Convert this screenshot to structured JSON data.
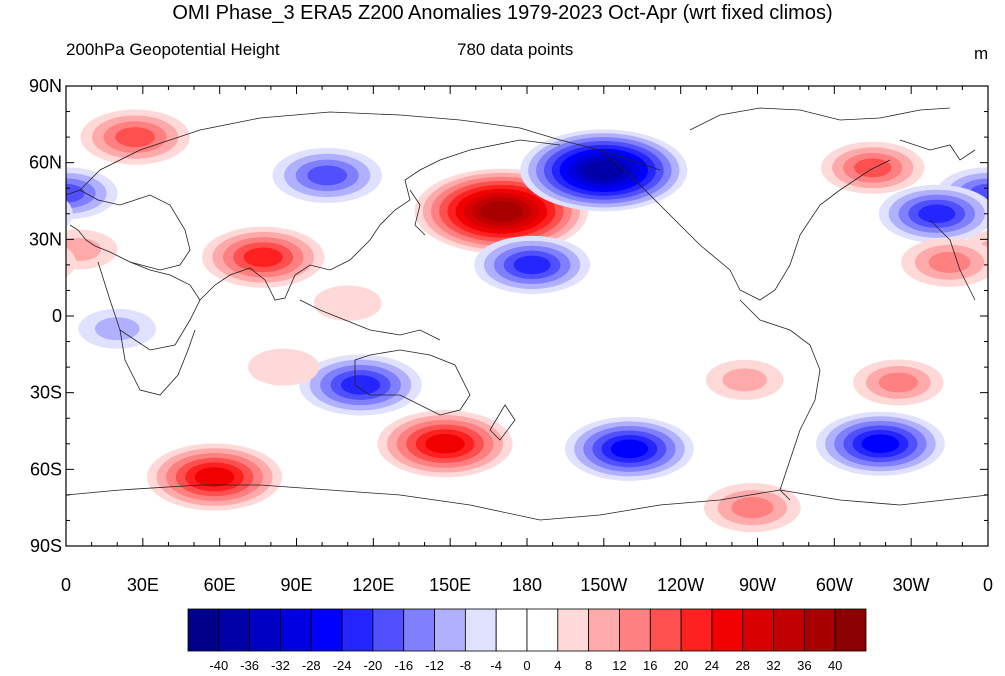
{
  "title": "OMI Phase_3 ERA5 Z200 Anomalies 1979-2023 Oct-Apr (wrt fixed climos)",
  "subtitle_left": "200hPa Geopotential Height",
  "subtitle_center": "780 data points",
  "units": "m",
  "lat_ticks": [
    {
      "value": 90,
      "label": "90N"
    },
    {
      "value": 60,
      "label": "60N"
    },
    {
      "value": 30,
      "label": "30N"
    },
    {
      "value": 0,
      "label": "0"
    },
    {
      "value": -30,
      "label": "30S"
    },
    {
      "value": -60,
      "label": "60S"
    },
    {
      "value": -90,
      "label": "90S"
    }
  ],
  "lon_ticks": [
    {
      "value": 0,
      "label": "0"
    },
    {
      "value": 30,
      "label": "30E"
    },
    {
      "value": 60,
      "label": "60E"
    },
    {
      "value": 90,
      "label": "90E"
    },
    {
      "value": 120,
      "label": "120E"
    },
    {
      "value": 150,
      "label": "150E"
    },
    {
      "value": 180,
      "label": "180"
    },
    {
      "value": 210,
      "label": "150W"
    },
    {
      "value": 240,
      "label": "120W"
    },
    {
      "value": 270,
      "label": "90W"
    },
    {
      "value": 300,
      "label": "60W"
    },
    {
      "value": 330,
      "label": "30W"
    },
    {
      "value": 360,
      "label": "0"
    }
  ],
  "colorbar": {
    "colors": [
      "#00008b",
      "#0000a8",
      "#0000c4",
      "#0000e0",
      "#0000ff",
      "#2525ff",
      "#5050ff",
      "#8080ff",
      "#b0b0ff",
      "#e0e0ff",
      "#ffffff",
      "#ffffff",
      "#ffd8d8",
      "#ffaaaa",
      "#ff8080",
      "#ff5050",
      "#ff2020",
      "#f00000",
      "#d80000",
      "#c00000",
      "#a80000",
      "#8b0000"
    ],
    "labels": [
      "-40",
      "-36",
      "-32",
      "-28",
      "-24",
      "-20",
      "-16",
      "-12",
      "-8",
      "-4",
      "0",
      "4",
      "8",
      "12",
      "16",
      "20",
      "24",
      "28",
      "32",
      "36",
      "40"
    ]
  },
  "chart_data": {
    "type": "heatmap",
    "title": "OMI Phase_3 ERA5 Z200 Anomalies 1979-2023 Oct-Apr (wrt fixed climos)",
    "variable": "200hPa Geopotential Height",
    "units": "m",
    "lon_range": [
      0,
      360
    ],
    "lat_range": [
      -90,
      90
    ],
    "contour_levels": [
      -40,
      -36,
      -32,
      -28,
      -24,
      -20,
      -16,
      -12,
      -8,
      -4,
      0,
      4,
      8,
      12,
      16,
      20,
      24,
      28,
      32,
      36,
      40
    ],
    "anomaly_centers": [
      {
        "lon": 27,
        "lat": 70,
        "value": 18
      },
      {
        "lon": 102,
        "lat": 55,
        "value": -18
      },
      {
        "lon": 0,
        "lat": 48,
        "value": -16
      },
      {
        "lon": 77,
        "lat": 23,
        "value": 22
      },
      {
        "lon": 5,
        "lat": 26,
        "value": 8
      },
      {
        "lon": 20,
        "lat": -5,
        "value": -8
      },
      {
        "lon": 170,
        "lat": 41,
        "value": 38
      },
      {
        "lon": 210,
        "lat": 57,
        "value": -36
      },
      {
        "lon": 182,
        "lat": 20,
        "value": -20
      },
      {
        "lon": 315,
        "lat": 58,
        "value": 16
      },
      {
        "lon": 340,
        "lat": 40,
        "value": -20
      },
      {
        "lon": 345,
        "lat": 21,
        "value": 14
      },
      {
        "lon": 115,
        "lat": -27,
        "value": -22
      },
      {
        "lon": 148,
        "lat": -50,
        "value": 26
      },
      {
        "lon": 220,
        "lat": -52,
        "value": -24
      },
      {
        "lon": 318,
        "lat": -50,
        "value": -24
      },
      {
        "lon": 325,
        "lat": -26,
        "value": 12
      },
      {
        "lon": 265,
        "lat": -25,
        "value": 8
      },
      {
        "lon": 58,
        "lat": -63,
        "value": 26
      },
      {
        "lon": 268,
        "lat": -75,
        "value": 14
      },
      {
        "lon": 85,
        "lat": -20,
        "value": 6
      },
      {
        "lon": 110,
        "lat": 5,
        "value": 5
      }
    ]
  }
}
